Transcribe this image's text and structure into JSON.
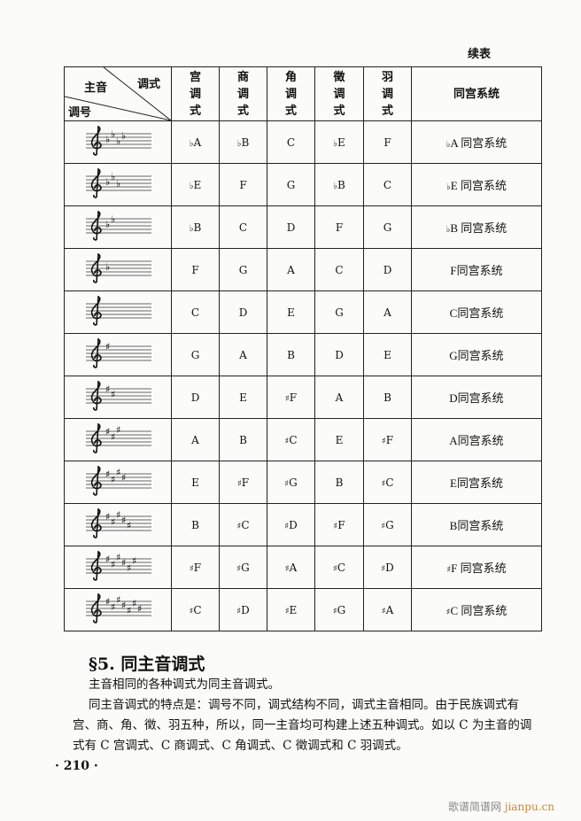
{
  "continued_label": "续表",
  "header": {
    "tonic": "主音",
    "mode": "调式",
    "key_sig": "调号",
    "modes": [
      "宫调式",
      "商调式",
      "角调式",
      "徵调式",
      "羽调式"
    ],
    "system": "同宫系统"
  },
  "rows": [
    {
      "key": {
        "accidental": "flat",
        "count": 4
      },
      "cells": [
        "♭A",
        "♭B",
        "C",
        "♭E",
        "F"
      ],
      "system": "♭A 同宫系统"
    },
    {
      "key": {
        "accidental": "flat",
        "count": 3
      },
      "cells": [
        "♭E",
        "F",
        "G",
        "♭B",
        "C"
      ],
      "system": "♭E 同宫系统"
    },
    {
      "key": {
        "accidental": "flat",
        "count": 2
      },
      "cells": [
        "♭B",
        "C",
        "D",
        "F",
        "G"
      ],
      "system": "♭B 同宫系统"
    },
    {
      "key": {
        "accidental": "flat",
        "count": 1
      },
      "cells": [
        "F",
        "G",
        "A",
        "C",
        "D"
      ],
      "system": "F同宫系统"
    },
    {
      "key": {
        "accidental": "none",
        "count": 0
      },
      "cells": [
        "C",
        "D",
        "E",
        "G",
        "A"
      ],
      "system": "C同宫系统"
    },
    {
      "key": {
        "accidental": "sharp",
        "count": 1
      },
      "cells": [
        "G",
        "A",
        "B",
        "D",
        "E"
      ],
      "system": "G同宫系统"
    },
    {
      "key": {
        "accidental": "sharp",
        "count": 2
      },
      "cells": [
        "D",
        "E",
        "♯F",
        "A",
        "B"
      ],
      "system": "D同宫系统"
    },
    {
      "key": {
        "accidental": "sharp",
        "count": 3
      },
      "cells": [
        "A",
        "B",
        "♯C",
        "E",
        "♯F"
      ],
      "system": "A同宫系统"
    },
    {
      "key": {
        "accidental": "sharp",
        "count": 4
      },
      "cells": [
        "E",
        "♯F",
        "♯G",
        "B",
        "♯C"
      ],
      "system": "E同宫系统"
    },
    {
      "key": {
        "accidental": "sharp",
        "count": 5
      },
      "cells": [
        "B",
        "♯C",
        "♯D",
        "♯F",
        "♯G"
      ],
      "system": "B同宫系统"
    },
    {
      "key": {
        "accidental": "sharp",
        "count": 6
      },
      "cells": [
        "♯F",
        "♯G",
        "♯A",
        "♯C",
        "♯D"
      ],
      "system": "♯F 同宫系统"
    },
    {
      "key": {
        "accidental": "sharp",
        "count": 7
      },
      "cells": [
        "♯C",
        "♯D",
        "♯E",
        "♯G",
        "♯A"
      ],
      "system": "♯C 同宫系统"
    }
  ],
  "section": {
    "title": "§5. 同主音调式",
    "paragraphs": [
      "主音相同的各种调式为同主音调式。",
      "同主音调式的特点是：调号不同，调式结构不同，调式主音相同。由于民族调式有宫、商、角、徵、羽五种，所以，同一主音均可构建上述五种调式。如以 C 为主音的调式有 C 宫调式、C 商调式、C 角调式、C 徵调式和 C 羽调式。"
    ]
  },
  "page_number": "· 210 ·",
  "watermark": {
    "cn": "歌谱简谱网",
    "en": "jianpu.cn"
  }
}
